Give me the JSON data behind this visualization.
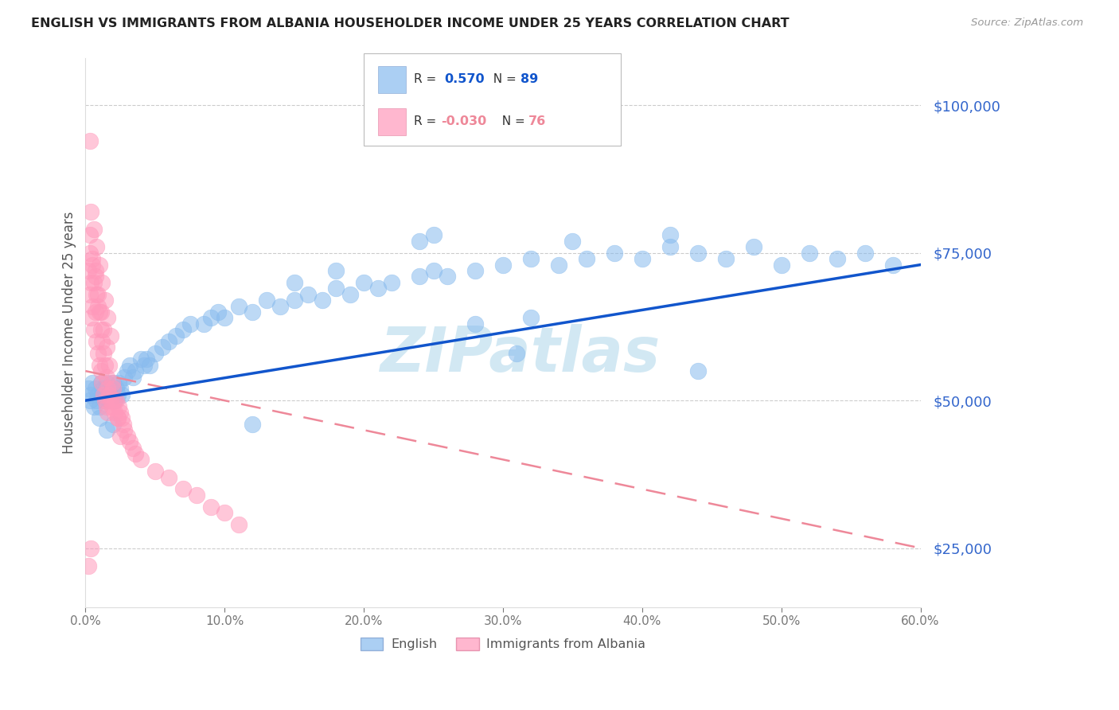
{
  "title": "ENGLISH VS IMMIGRANTS FROM ALBANIA HOUSEHOLDER INCOME UNDER 25 YEARS CORRELATION CHART",
  "source": "Source: ZipAtlas.com",
  "ylabel": "Householder Income Under 25 years",
  "right_ytick_labels": [
    "$25,000",
    "$50,000",
    "$75,000",
    "$100,000"
  ],
  "right_ytick_values": [
    25000,
    50000,
    75000,
    100000
  ],
  "english_R": 0.57,
  "english_N": 89,
  "albania_R": -0.03,
  "albania_N": 76,
  "xmin": 0.0,
  "xmax": 0.6,
  "ymin": 15000,
  "ymax": 108000,
  "blue_color": "#88BBEE",
  "pink_color": "#FF99BB",
  "blue_line_color": "#1155CC",
  "pink_line_color": "#EE8899",
  "watermark": "ZIPatlas",
  "watermark_color": "#BBDDEE",
  "english_x": [
    0.002,
    0.003,
    0.004,
    0.005,
    0.006,
    0.007,
    0.008,
    0.009,
    0.01,
    0.011,
    0.012,
    0.013,
    0.014,
    0.015,
    0.016,
    0.017,
    0.018,
    0.019,
    0.02,
    0.021,
    0.022,
    0.023,
    0.024,
    0.025,
    0.026,
    0.028,
    0.03,
    0.032,
    0.034,
    0.036,
    0.04,
    0.042,
    0.044,
    0.046,
    0.05,
    0.055,
    0.06,
    0.065,
    0.07,
    0.075,
    0.085,
    0.09,
    0.095,
    0.1,
    0.11,
    0.12,
    0.13,
    0.14,
    0.15,
    0.16,
    0.17,
    0.18,
    0.19,
    0.2,
    0.21,
    0.22,
    0.24,
    0.25,
    0.26,
    0.28,
    0.3,
    0.32,
    0.34,
    0.36,
    0.38,
    0.4,
    0.42,
    0.44,
    0.46,
    0.48,
    0.5,
    0.52,
    0.54,
    0.56,
    0.58,
    0.01,
    0.015,
    0.02,
    0.18,
    0.24,
    0.12,
    0.35,
    0.42,
    0.28,
    0.44,
    0.15,
    0.32,
    0.25,
    0.31
  ],
  "english_y": [
    52000,
    50000,
    51000,
    53000,
    49000,
    52000,
    50000,
    51000,
    49000,
    53000,
    51000,
    52000,
    50000,
    53000,
    51000,
    50000,
    52000,
    51000,
    53000,
    50000,
    52000,
    51000,
    53000,
    52000,
    51000,
    54000,
    55000,
    56000,
    54000,
    55000,
    57000,
    56000,
    57000,
    56000,
    58000,
    59000,
    60000,
    61000,
    62000,
    63000,
    63000,
    64000,
    65000,
    64000,
    66000,
    65000,
    67000,
    66000,
    67000,
    68000,
    67000,
    69000,
    68000,
    70000,
    69000,
    70000,
    71000,
    72000,
    71000,
    72000,
    73000,
    74000,
    73000,
    74000,
    75000,
    74000,
    76000,
    75000,
    74000,
    76000,
    73000,
    75000,
    74000,
    75000,
    73000,
    47000,
    45000,
    46000,
    72000,
    77000,
    46000,
    77000,
    78000,
    63000,
    55000,
    70000,
    64000,
    78000,
    58000
  ],
  "albania_x": [
    0.002,
    0.003,
    0.003,
    0.004,
    0.004,
    0.005,
    0.005,
    0.006,
    0.006,
    0.007,
    0.007,
    0.008,
    0.008,
    0.009,
    0.009,
    0.01,
    0.01,
    0.011,
    0.011,
    0.012,
    0.012,
    0.013,
    0.013,
    0.014,
    0.014,
    0.015,
    0.015,
    0.016,
    0.016,
    0.017,
    0.018,
    0.019,
    0.02,
    0.021,
    0.022,
    0.023,
    0.024,
    0.025,
    0.026,
    0.027,
    0.028,
    0.03,
    0.032,
    0.034,
    0.036,
    0.04,
    0.05,
    0.06,
    0.07,
    0.08,
    0.09,
    0.1,
    0.11,
    0.003,
    0.005,
    0.007,
    0.009,
    0.011,
    0.013,
    0.015,
    0.017,
    0.019,
    0.021,
    0.023,
    0.025,
    0.004,
    0.006,
    0.008,
    0.01,
    0.012,
    0.014,
    0.016,
    0.018,
    0.003,
    0.002,
    0.004
  ],
  "albania_y": [
    72000,
    75000,
    68000,
    70000,
    64000,
    73000,
    66000,
    70000,
    62000,
    72000,
    65000,
    68000,
    60000,
    66000,
    58000,
    65000,
    56000,
    62000,
    55000,
    60000,
    53000,
    58000,
    51000,
    56000,
    50000,
    54000,
    49000,
    52000,
    48000,
    51000,
    50000,
    49000,
    52000,
    48000,
    50000,
    47000,
    49000,
    48000,
    47000,
    46000,
    45000,
    44000,
    43000,
    42000,
    41000,
    40000,
    38000,
    37000,
    35000,
    34000,
    32000,
    31000,
    29000,
    78000,
    74000,
    71000,
    68000,
    65000,
    62000,
    59000,
    56000,
    53000,
    50000,
    47000,
    44000,
    82000,
    79000,
    76000,
    73000,
    70000,
    67000,
    64000,
    61000,
    94000,
    22000,
    25000
  ]
}
